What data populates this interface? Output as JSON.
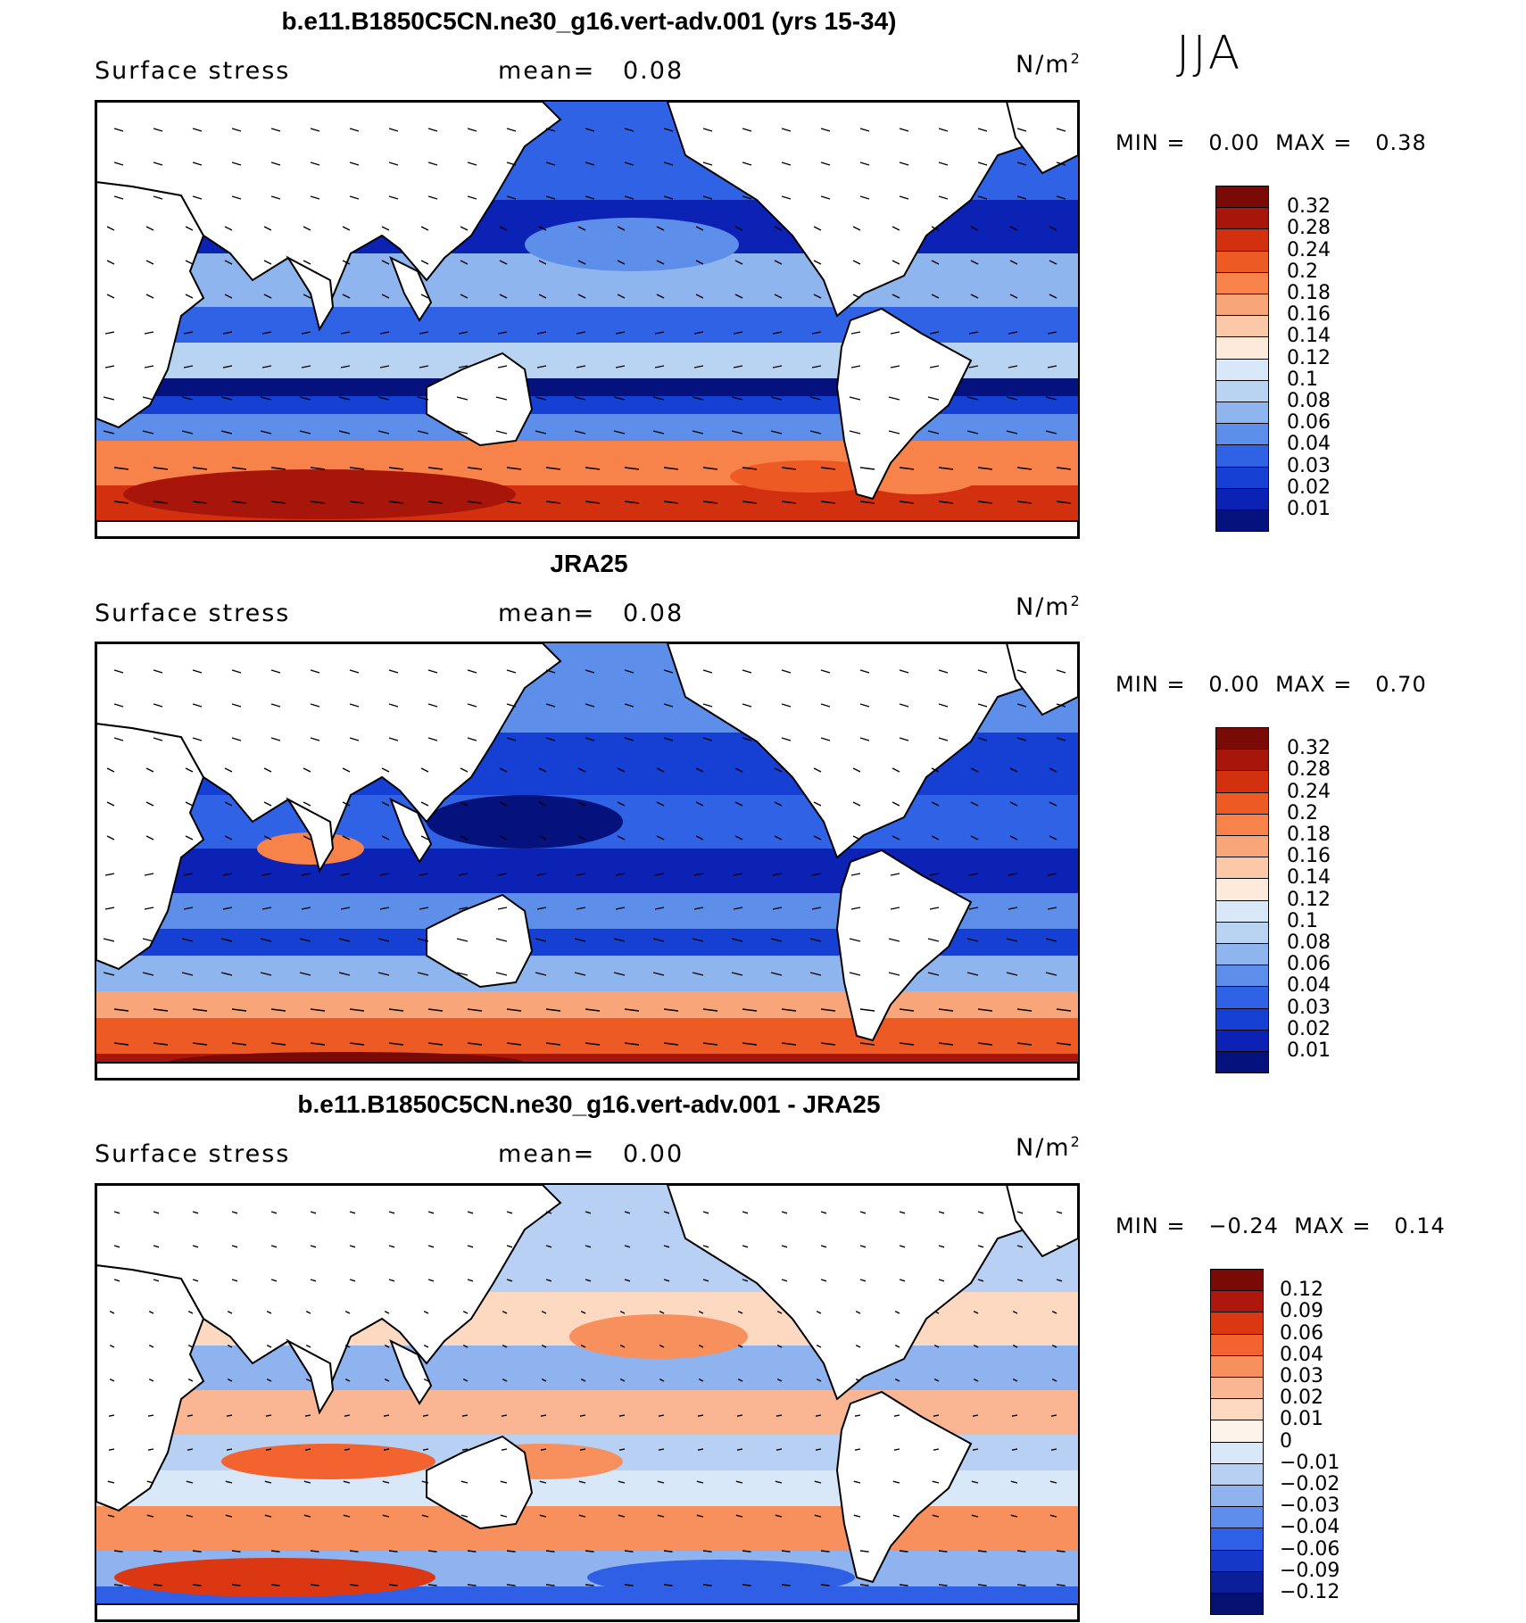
{
  "season": "JJA",
  "panels": [
    {
      "title": "b.e11.B1850C5CN.ne30_g16.vert-adv.001 (yrs 15-34)",
      "variable": "Surface stress",
      "mean_label": "mean=",
      "mean_value": "0.08",
      "unit": "N/m",
      "unit_exp": "2",
      "min_label": "MIN =",
      "min_value": "0.00",
      "max_label": "MAX =",
      "max_value": "0.38",
      "colorbar": [
        "0.32",
        "0.28",
        "0.24",
        "0.2",
        "0.18",
        "0.16",
        "0.14",
        "0.12",
        "0.1",
        "0.08",
        "0.06",
        "0.04",
        "0.03",
        "0.02",
        "0.01"
      ]
    },
    {
      "title": "JRA25",
      "variable": "Surface stress",
      "mean_label": "mean=",
      "mean_value": "0.08",
      "unit": "N/m",
      "unit_exp": "2",
      "min_label": "MIN =",
      "min_value": "0.00",
      "max_label": "MAX =",
      "max_value": "0.70",
      "colorbar": [
        "0.32",
        "0.28",
        "0.24",
        "0.2",
        "0.18",
        "0.16",
        "0.14",
        "0.12",
        "0.1",
        "0.08",
        "0.06",
        "0.04",
        "0.03",
        "0.02",
        "0.01"
      ]
    },
    {
      "title": "b.e11.B1850C5CN.ne30_g16.vert-adv.001 - JRA25",
      "variable": "Surface stress",
      "mean_label": "mean=",
      "mean_value": "0.00",
      "unit": "N/m",
      "unit_exp": "2",
      "min_label": "MIN =",
      "min_value": "−0.24",
      "max_label": "MAX =",
      "max_value": "0.14",
      "colorbar": [
        "0.12",
        "0.09",
        "0.06",
        "0.04",
        "0.03",
        "0.02",
        "0.01",
        "0",
        "−0.01",
        "−0.02",
        "−0.03",
        "−0.04",
        "−0.06",
        "−0.09",
        "−0.12"
      ]
    }
  ],
  "colors": {
    "seq": [
      "#7a0a06",
      "#a8150b",
      "#d2300f",
      "#ee5a24",
      "#f7834a",
      "#f9a57a",
      "#fcc9a8",
      "#fdeadb",
      "#d8e8f8",
      "#b9d3f3",
      "#8fb5ee",
      "#5d8eea",
      "#2f62e4",
      "#163fd4",
      "#0c22b4",
      "#05127e"
    ],
    "div": [
      "#7a0a06",
      "#b0170c",
      "#db3713",
      "#f26330",
      "#f7905c",
      "#fab592",
      "#fdd9c2",
      "#fef3ea",
      "#d9e8f9",
      "#b7d0f3",
      "#8fb3ee",
      "#5f8deb",
      "#2f5fe5",
      "#1538c8",
      "#0a1f98",
      "#041170"
    ],
    "land": "#ffffff",
    "coast": "#000000"
  }
}
